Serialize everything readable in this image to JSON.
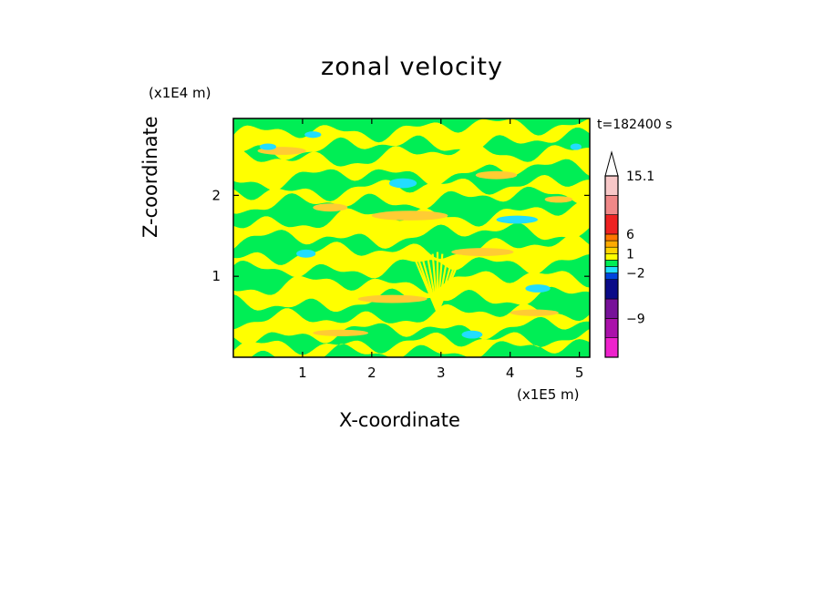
{
  "chart_data": {
    "type": "heatmap",
    "title": "zonal velocity",
    "xlabel": "X-coordinate",
    "ylabel": "Z-coordinate",
    "x_unit": "(x1E5 m)",
    "y_unit": "(x1E4 m)",
    "time_label": "t=182400 s",
    "xlim": [
      0,
      5.15
    ],
    "ylim": [
      0,
      2.95
    ],
    "x_ticks": [
      1,
      2,
      3,
      4,
      5
    ],
    "y_ticks": [
      1,
      2
    ],
    "grid": false,
    "colorbar": {
      "labels": [
        "15.1",
        "6",
        "1",
        "−2",
        "−9"
      ],
      "label_levels": [
        15.1,
        6,
        1,
        -2,
        -9
      ],
      "levels": [
        -15,
        -12,
        -9,
        -6,
        -3,
        -2,
        -1,
        0,
        1,
        2,
        3,
        6,
        9,
        12,
        15.1
      ],
      "colors": [
        "#ee22cc",
        "#aa11aa",
        "#771199",
        "#0b0b88",
        "#0044dd",
        "#22ddff",
        "#00ee55",
        "#ffff00",
        "#ffd400",
        "#ffaa00",
        "#ff7700",
        "#ee2222",
        "#f08888",
        "#f8c8c8"
      ],
      "extend_top": true
    },
    "fill_colors": {
      "green": "#00ee55",
      "yellow": "#ffff00",
      "orange": "#ffcc33",
      "cyan": "#22ddff"
    }
  }
}
